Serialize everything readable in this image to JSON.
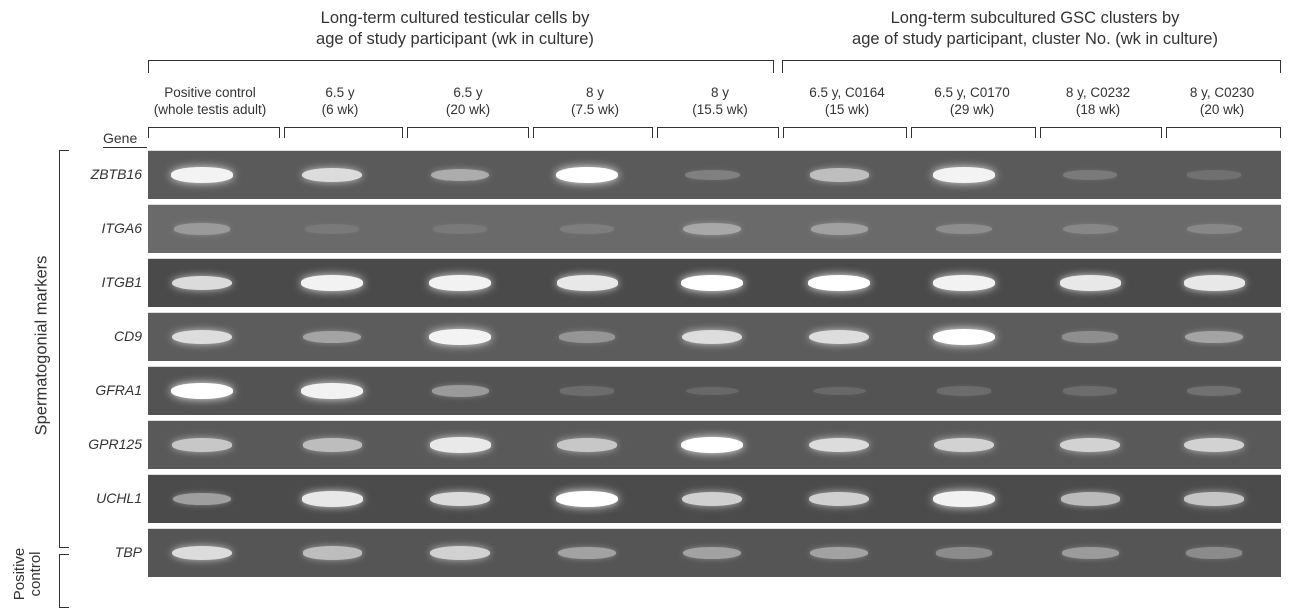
{
  "groups": [
    {
      "title_line1": "Long-term cultured testicular cells by",
      "title_line2": "age of study participant (wk in culture)"
    },
    {
      "title_line1": "Long-term subcultured GSC clusters by",
      "title_line2": "age of study participant, cluster No. (wk in culture)"
    }
  ],
  "gene_header": "Gene",
  "lanes": [
    {
      "line1": "Positive control",
      "line2": "(whole testis adult)"
    },
    {
      "line1": "6.5 y",
      "line2": "(6 wk)"
    },
    {
      "line1": "6.5 y",
      "line2": "(20 wk)"
    },
    {
      "line1": "8 y",
      "line2": "(7.5 wk)"
    },
    {
      "line1": "8 y",
      "line2": "(15.5 wk)"
    },
    {
      "line1": "6.5 y, C0164",
      "line2": "(15 wk)"
    },
    {
      "line1": "6.5 y, C0170",
      "line2": "(29 wk)"
    },
    {
      "line1": "8 y, C0232",
      "line2": "(18 wk)"
    },
    {
      "line1": "8 y, C0230",
      "line2": "(20 wk)"
    }
  ],
  "side_labels": {
    "spermatogonial": "Spermatogonial markers",
    "positive_control_line1": "Positive",
    "positive_control_line2": "control"
  },
  "genes": [
    {
      "name": "ZBTB16",
      "bg": "#5a5a5a",
      "intensity": [
        0.95,
        0.85,
        0.6,
        1.0,
        0.3,
        0.7,
        0.95,
        0.25,
        0.15
      ]
    },
    {
      "name": "ITGA6",
      "bg": "#6a6a6a",
      "intensity": [
        0.45,
        0.15,
        0.15,
        0.2,
        0.55,
        0.5,
        0.35,
        0.3,
        0.3
      ]
    },
    {
      "name": "ITGB1",
      "bg": "#4a4a4a",
      "intensity": [
        0.85,
        0.95,
        0.95,
        0.9,
        1.0,
        1.0,
        0.95,
        0.9,
        0.9
      ]
    },
    {
      "name": "CD9",
      "bg": "#5c5c5c",
      "intensity": [
        0.85,
        0.55,
        0.95,
        0.45,
        0.85,
        0.85,
        1.0,
        0.4,
        0.55
      ]
    },
    {
      "name": "GFRA1",
      "bg": "#535353",
      "intensity": [
        1.0,
        0.95,
        0.5,
        0.15,
        0.1,
        0.1,
        0.15,
        0.15,
        0.2
      ]
    },
    {
      "name": "GPR125",
      "bg": "#595959",
      "intensity": [
        0.75,
        0.7,
        0.9,
        0.75,
        1.0,
        0.85,
        0.8,
        0.8,
        0.8
      ]
    },
    {
      "name": "UCHL1",
      "bg": "#4b4b4b",
      "intensity": [
        0.55,
        0.9,
        0.85,
        1.0,
        0.8,
        0.8,
        0.95,
        0.7,
        0.75
      ]
    },
    {
      "name": "TBP",
      "bg": "#555555",
      "intensity": [
        0.85,
        0.7,
        0.8,
        0.55,
        0.55,
        0.55,
        0.4,
        0.5,
        0.4
      ]
    }
  ]
}
